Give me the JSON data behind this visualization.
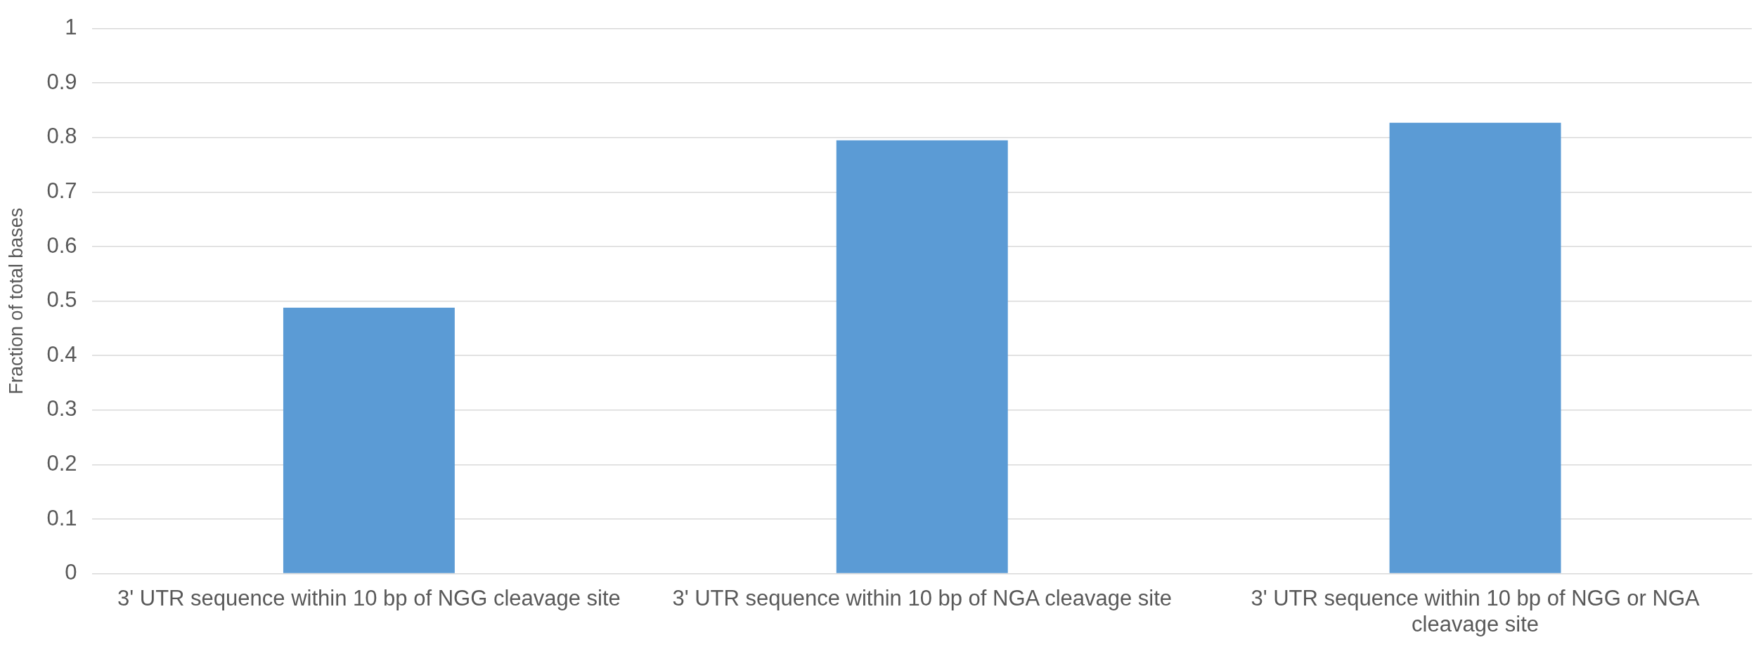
{
  "chart_data": {
    "type": "bar",
    "ylabel": "Fraction of total bases",
    "categories": [
      "3' UTR sequence within 10 bp of NGG cleavage site",
      "3' UTR sequence within 10 bp of NGA cleavage site",
      "3' UTR sequence within 10 bp of NGG or NGA cleavage site"
    ],
    "values": [
      0.488,
      0.795,
      0.827
    ],
    "color": "#5b9bd5",
    "ylim": [
      0,
      1
    ],
    "yticks": [
      0,
      0.1,
      0.2,
      0.3,
      0.4,
      0.5,
      0.6,
      0.7,
      0.8,
      0.9,
      1
    ],
    "grid": "y"
  }
}
